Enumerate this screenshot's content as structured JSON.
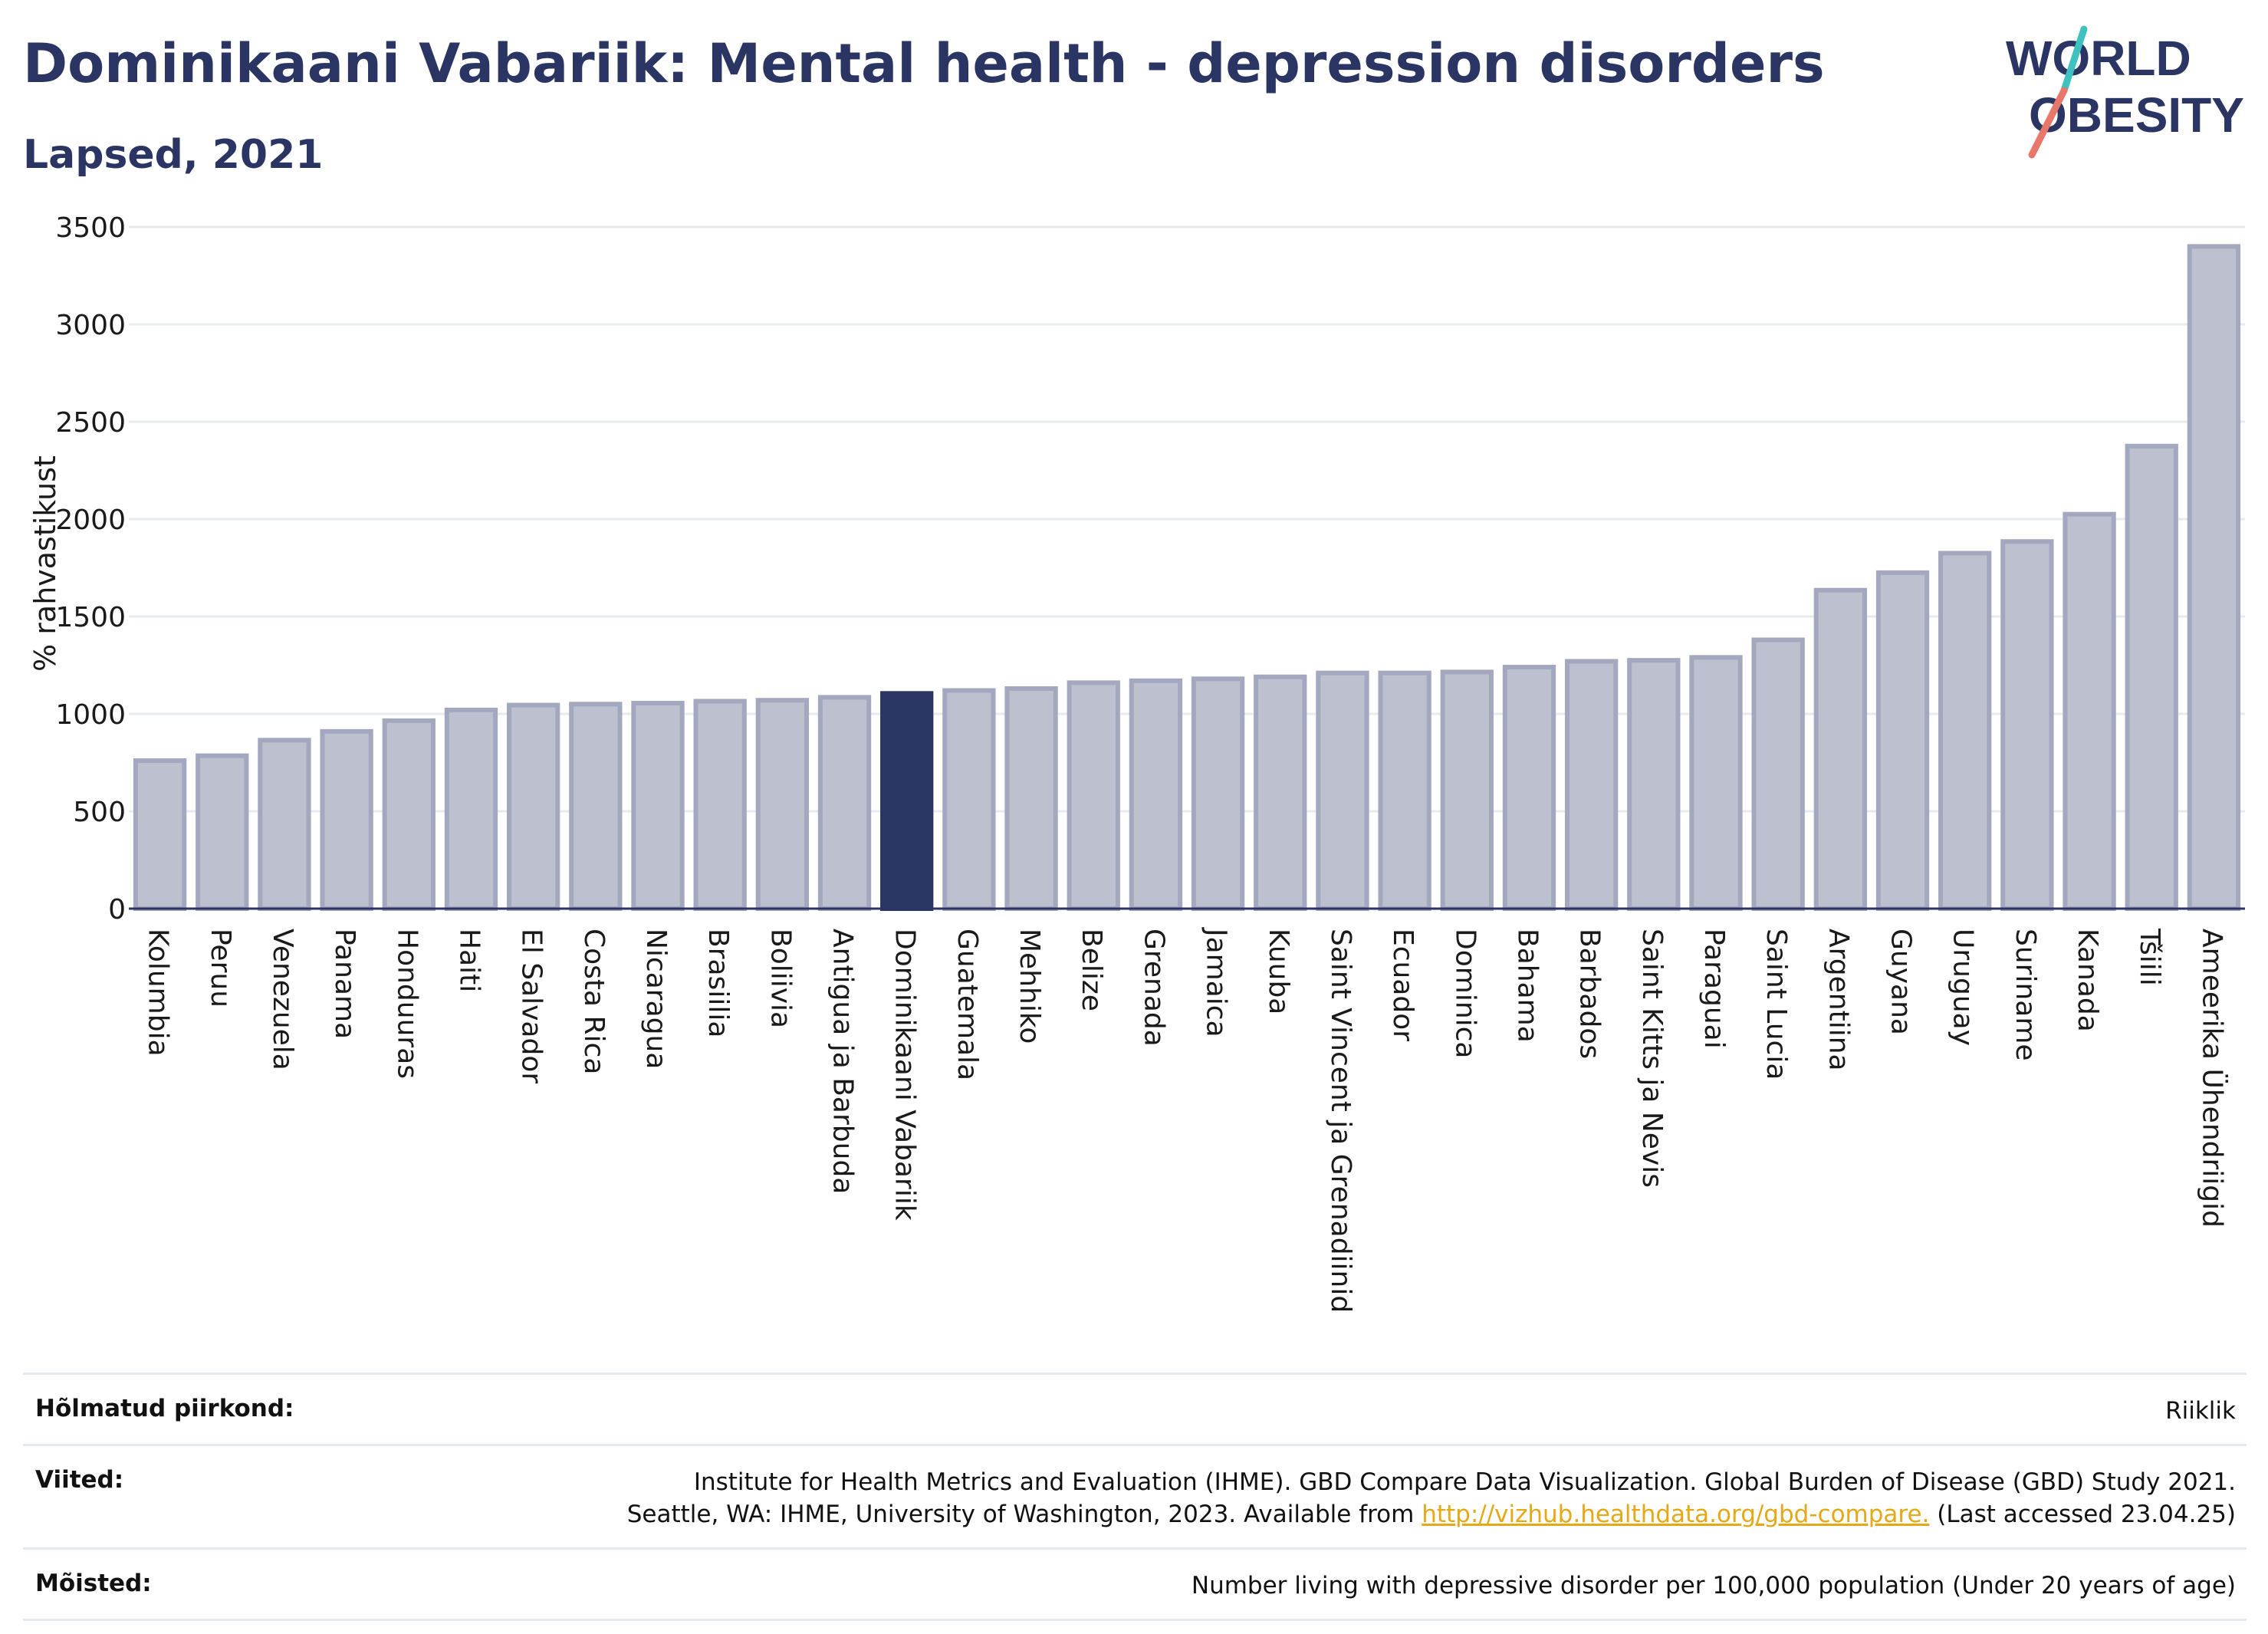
{
  "header": {
    "title": "Dominikaani Vabariik: Mental health - depression disorders",
    "subtitle": "Lapsed, 2021"
  },
  "logo": {
    "line1": "WORLD",
    "line2": "OBESITY"
  },
  "colors": {
    "bar": "#bcc0cf",
    "bar_border": "#a3a8bf",
    "highlight": "#2b3563",
    "grid": "#e7eaee",
    "text": "#2b3563"
  },
  "chart_data": {
    "type": "bar",
    "ylabel": "% rahvastikust",
    "ylim": [
      0,
      3500
    ],
    "yticks": [
      0,
      500,
      1000,
      1500,
      2000,
      2500,
      3000,
      3500
    ],
    "grid": true,
    "highlight": "Dominikaani Vabariik",
    "categories": [
      "Kolumbia",
      "Peruu",
      "Venezuela",
      "Panama",
      "Honduuras",
      "Haiti",
      "El Salvador",
      "Costa Rica",
      "Nicaragua",
      "Brasiilia",
      "Boliivia",
      "Antigua ja Barbuda",
      "Dominikaani Vabariik",
      "Guatemala",
      "Mehhiko",
      "Belize",
      "Grenada",
      "Jamaica",
      "Kuuba",
      "Saint Vincent ja Grenadiinid",
      "Ecuador",
      "Dominica",
      "Bahama",
      "Barbados",
      "Saint Kitts ja Nevis",
      "Paraguai",
      "Saint Lucia",
      "Argentiina",
      "Guyana",
      "Uruguay",
      "Suriname",
      "Kanada",
      "Tšiili",
      "Ameerika Ühendriigid"
    ],
    "values": [
      760,
      785,
      865,
      910,
      965,
      1020,
      1045,
      1050,
      1055,
      1065,
      1070,
      1085,
      1105,
      1120,
      1130,
      1160,
      1170,
      1180,
      1190,
      1210,
      1210,
      1215,
      1240,
      1270,
      1275,
      1290,
      1380,
      1635,
      1725,
      1825,
      1885,
      2025,
      2375,
      3400
    ]
  },
  "footer": {
    "rows": [
      {
        "label": "Hõlmatud piirkond:",
        "lines": [
          "Riiklik"
        ]
      },
      {
        "label": "Viited:",
        "lines": [
          "Institute for Health Metrics and Evaluation (IHME). GBD Compare Data Visualization. Global Burden of Disease (GBD) Study 2021."
        ],
        "line2_prefix": "Seattle, WA: IHME, University of Washington, 2023. Available from ",
        "link": "http://vizhub.healthdata.org/gbd-compare.",
        "line2_suffix": " (Last accessed 23.04.25)"
      },
      {
        "label": "Mõisted:",
        "lines": [
          "Number living with depressive disorder per 100,000 population (Under 20 years of age)"
        ]
      }
    ]
  }
}
